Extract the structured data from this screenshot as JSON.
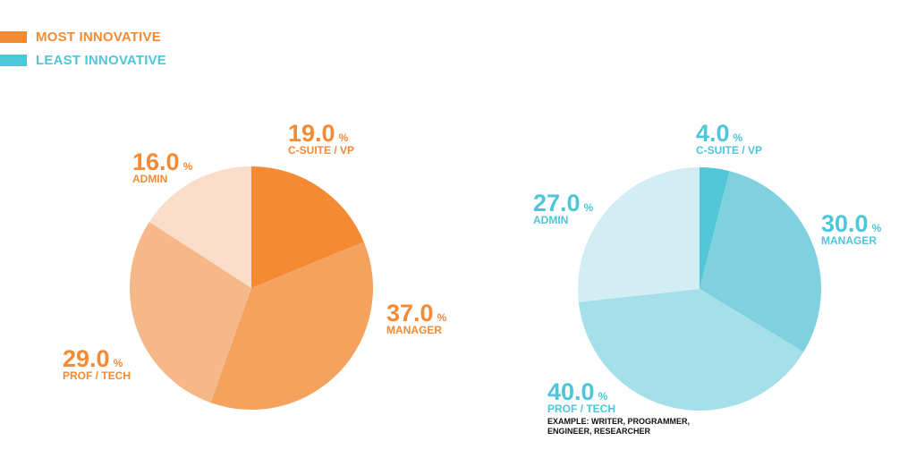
{
  "legend": [
    {
      "label": "MOST INNOVATIVE",
      "color": "#f58a35"
    },
    {
      "label": "LEAST INNOVATIVE",
      "color": "#4dc6d9"
    }
  ],
  "chart_data": [
    {
      "type": "pie",
      "series_name": "MOST INNOVATIVE",
      "unit": "%",
      "label_color": "#f58a35",
      "slices": [
        {
          "label": "C-SUITE / VP",
          "value": 19.0,
          "color": "#f58a35"
        },
        {
          "label": "MANAGER",
          "value": 37.0,
          "color": "#f5a25f"
        },
        {
          "label": "PROF / TECH",
          "value": 29.0,
          "color": "#f6b888"
        },
        {
          "label": "ADMIN",
          "value": 16.0,
          "color": "#f9ddc8"
        }
      ]
    },
    {
      "type": "pie",
      "series_name": "LEAST INNOVATIVE",
      "unit": "%",
      "label_color": "#4dc6d9",
      "slices": [
        {
          "label": "C-SUITE / VP",
          "value": 4.0,
          "color": "#52c6d9"
        },
        {
          "label": "MANAGER",
          "value": 30.0,
          "color": "#7fd1e0"
        },
        {
          "label": "PROF / TECH",
          "value": 40.0,
          "color": "#a5dfea",
          "note": [
            "EXAMPLE: WRITER, PROGRAMMER,",
            "ENGINEER, RESEARCHER"
          ]
        },
        {
          "label": "ADMIN",
          "value": 27.0,
          "color": "#d3edf4"
        }
      ]
    }
  ]
}
